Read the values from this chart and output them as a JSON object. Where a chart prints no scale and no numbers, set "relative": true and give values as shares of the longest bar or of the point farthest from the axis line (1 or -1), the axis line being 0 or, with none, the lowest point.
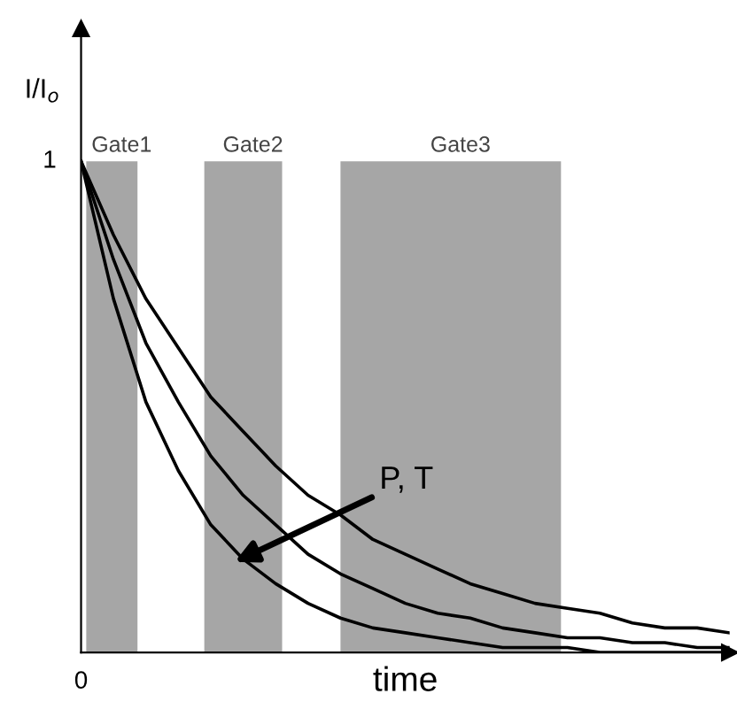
{
  "chart_data": {
    "type": "line",
    "xlabel": "time",
    "ylabel": "I/I$_{o}$",
    "categories": [
      null,
      null,
      null,
      null,
      null,
      null,
      null,
      null,
      null,
      null,
      null,
      null,
      null,
      null,
      null,
      null,
      null,
      null,
      null,
      null,
      null
    ],
    "series": [
      {
        "color": "#000000",
        "values": [
          1,
          0.72,
          0.51,
          0.37,
          0.26,
          0.19,
          0.14,
          0.1,
          0.07,
          0.05,
          0.04,
          0.03,
          0.02,
          0.01,
          0.01,
          0.01,
          0,
          0,
          0,
          0,
          0
        ]
      },
      {
        "color": "#000000",
        "values": [
          1,
          0.8,
          0.63,
          0.51,
          0.4,
          0.32,
          0.26,
          0.2,
          0.16,
          0.13,
          0.1,
          0.08,
          0.07,
          0.05,
          0.04,
          0.03,
          0.03,
          0.02,
          0.02,
          0.01,
          0.01
        ]
      },
      {
        "color": "#000000",
        "values": [
          1,
          0.85,
          0.72,
          0.62,
          0.52,
          0.45,
          0.38,
          0.32,
          0.28,
          0.23,
          0.2,
          0.17,
          0.14,
          0.12,
          0.1,
          0.09,
          0.08,
          0.06,
          0.05,
          0.05,
          0.04
        ]
      }
    ],
    "annotations": [
      "0",
      "1",
      "Gate1",
      "Gate2",
      "Gate3",
      "P, T"
    ],
    "relative": true,
    "legend": false,
    "marker": "none",
    "line_style": "solid"
  }
}
